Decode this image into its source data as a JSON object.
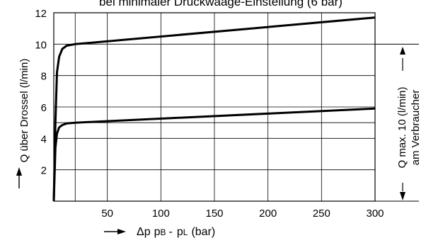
{
  "chart_data": {
    "type": "line",
    "title": "bei minimaler Druckwaage-Einstellung (6 bar)",
    "ylabel": "Q über Drossel (l/min)",
    "xlabel": {
      "symbol": "Δp",
      "pB": "p",
      "pB_sub": "B",
      "sep": "-",
      "pL": "p",
      "pL_sub": "L",
      "unit": "(bar)"
    },
    "xlim": [
      0,
      300
    ],
    "ylim": [
      0,
      12
    ],
    "x_ticks": [
      50,
      100,
      150,
      200,
      250,
      300
    ],
    "y_ticks": [
      2,
      4,
      6,
      8,
      10,
      12
    ],
    "grid": true,
    "series": [
      {
        "x": [
          0,
          1.5,
          3,
          5,
          8,
          12,
          20,
          300
        ],
        "y": [
          0,
          5.0,
          8.2,
          9.2,
          9.7,
          9.9,
          10.0,
          11.7
        ]
      },
      {
        "x": [
          0,
          1.5,
          3,
          5,
          8,
          12,
          20,
          300
        ],
        "y": [
          0,
          3.4,
          4.3,
          4.7,
          4.85,
          4.95,
          5.0,
          5.9
        ]
      }
    ],
    "annotation": {
      "value_line": 10,
      "line1": "Q max. 10 (l/min)",
      "line2": "am Verbraucher"
    }
  }
}
